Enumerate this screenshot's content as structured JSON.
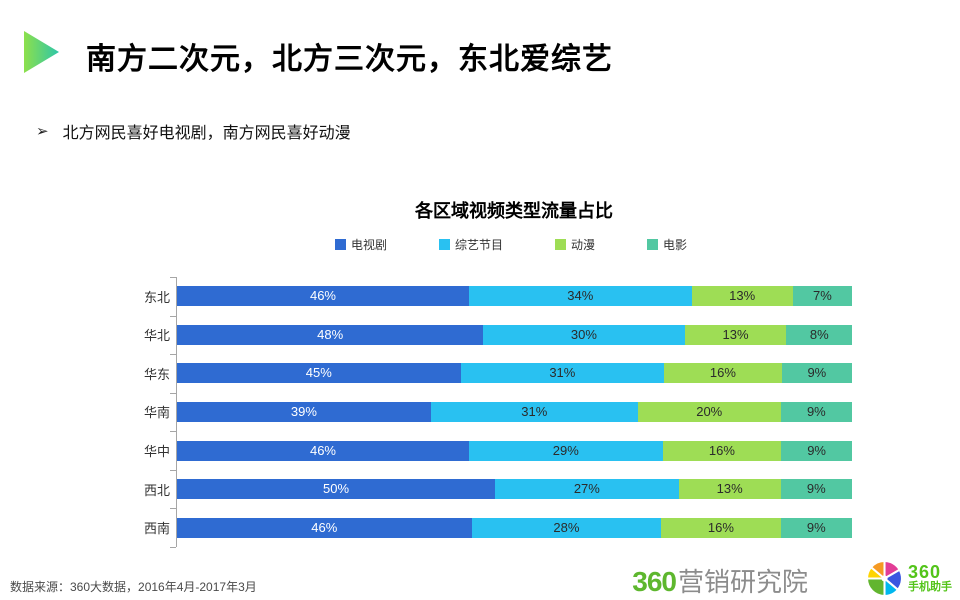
{
  "slide": {
    "title": "南方二次元，北方三次元，东北爱综艺",
    "bullet_marker": "➢",
    "bullet": "北方网民喜好电视剧，南方网民喜好动漫",
    "footer_source": "数据来源：360大数据，2016年4月-2017年3月",
    "accent_gradient_start": "#8de04c",
    "accent_gradient_end": "#2ec6a8",
    "logos": {
      "research_360": "360",
      "research_suffix": "营销研究院",
      "assistant_360": "360",
      "assistant_suffix": "手机助手",
      "logo_green": "#5eb72e"
    }
  },
  "chart_data": {
    "type": "bar",
    "orientation": "horizontal-stacked",
    "title": "各区域视频类型流量占比",
    "categories": [
      "东北",
      "华北",
      "华东",
      "华南",
      "华中",
      "西北",
      "西南"
    ],
    "series": [
      {
        "name": "电视剧",
        "color": "#2f6bd2",
        "values": [
          46,
          48,
          45,
          39,
          46,
          50,
          46
        ]
      },
      {
        "name": "综艺节目",
        "color": "#29c1f1",
        "values": [
          34,
          30,
          31,
          31,
          29,
          27,
          28
        ]
      },
      {
        "name": "动漫",
        "color": "#9edd55",
        "values": [
          13,
          13,
          16,
          20,
          16,
          13,
          16
        ]
      },
      {
        "name": "电影",
        "color": "#52c8a2",
        "values": [
          7,
          8,
          9,
          9,
          9,
          9,
          9
        ]
      }
    ],
    "value_suffix": "%",
    "first_series_label_color": "#ffffff",
    "other_series_label_color": "#2b2b2b",
    "legend_position": "top",
    "xlim": [
      0,
      100
    ],
    "grid": false
  }
}
